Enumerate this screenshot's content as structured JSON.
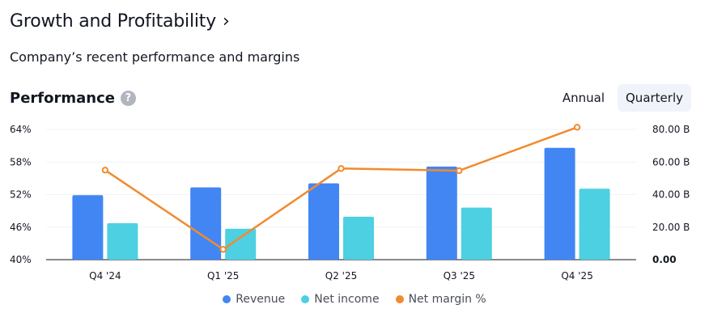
{
  "header": {
    "title": "Growth and Profitability",
    "chevron": "›",
    "subtitle": "Company’s recent performance and margins"
  },
  "performance": {
    "title": "Performance",
    "help_icon": "?",
    "toggle": {
      "annual_label": "Annual",
      "quarterly_label": "Quarterly",
      "selected": "Quarterly"
    }
  },
  "colors": {
    "revenue": "#4286f4",
    "net_income": "#4dd0e1",
    "net_margin": "#f28a2e",
    "grid": "#f0f3fa",
    "axis_text": "#131722"
  },
  "chart_data": {
    "type": "bar",
    "title": "Performance",
    "categories": [
      "Q4 '24",
      "Q1 '25",
      "Q2 '25",
      "Q3 '25",
      "Q4 '25"
    ],
    "series": [
      {
        "name": "Revenue",
        "kind": "bar",
        "axis": "right",
        "values": [
          39.6,
          44.4,
          46.9,
          57.2,
          68.7
        ]
      },
      {
        "name": "Net income",
        "kind": "bar",
        "axis": "right",
        "values": [
          22.4,
          19.0,
          26.4,
          32.0,
          43.6
        ]
      },
      {
        "name": "Net margin %",
        "kind": "line",
        "axis": "left",
        "values": [
          56.5,
          41.9,
          56.8,
          56.4,
          64.4
        ]
      }
    ],
    "left_axis": {
      "min": 40,
      "max": 64,
      "ticks": [
        "64%",
        "58%",
        "52%",
        "46%",
        "40%"
      ]
    },
    "right_axis": {
      "min": 0,
      "max": 80,
      "ticks": [
        "80.00 B",
        "60.00 B",
        "40.00 B",
        "20.00 B",
        "0.00"
      ]
    },
    "legend": [
      "Revenue",
      "Net income",
      "Net margin %"
    ],
    "legend_position": "bottom",
    "grid": true
  }
}
